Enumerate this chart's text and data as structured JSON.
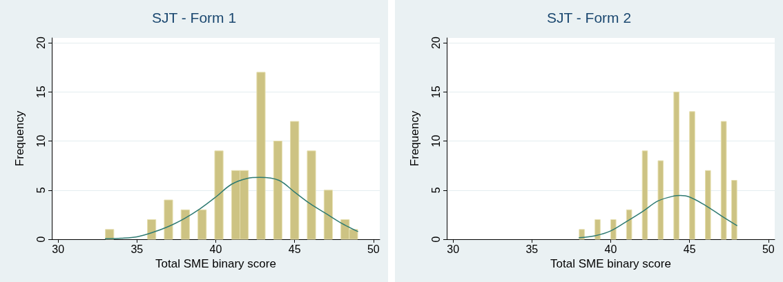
{
  "chart_data": [
    {
      "type": "histogram",
      "title": "SJT - Form 1",
      "xlabel": "Total SME binary score",
      "ylabel": "Frequency",
      "bins": [
        33,
        33.533,
        34.067,
        34.6,
        35.133,
        35.667,
        36.2,
        36.733,
        37.267,
        37.8,
        38.333,
        38.867,
        39.4,
        39.933,
        40.467,
        41,
        41.533,
        42.067,
        42.6,
        43.133,
        43.667,
        44.2,
        44.733,
        45.267,
        45.8,
        46.333,
        46.867,
        47.4,
        47.933,
        48.467,
        49
      ],
      "series": [
        {
          "type": "histogram",
          "color": "#cdc383",
          "values": [
            1,
            0,
            0,
            0,
            0,
            2,
            0,
            4,
            0,
            3,
            0,
            3,
            0,
            9,
            0,
            7,
            7,
            0,
            17,
            0,
            10,
            0,
            12,
            0,
            9,
            0,
            5,
            0,
            2,
            1
          ]
        },
        {
          "type": "line",
          "color": "#2e7a72",
          "x": [
            33,
            34,
            35,
            36,
            37,
            38,
            39,
            40,
            41,
            42,
            42.8,
            44,
            45,
            46,
            47,
            48,
            49
          ],
          "values": [
            0.05,
            0.1,
            0.25,
            0.7,
            1.3,
            2.1,
            3.1,
            4.3,
            5.6,
            6.2,
            6.3,
            6.0,
            4.8,
            3.6,
            2.6,
            1.6,
            0.8
          ]
        }
      ],
      "xlim": [
        29.6,
        50.4
      ],
      "xticks": [
        30,
        35,
        40,
        45,
        50
      ],
      "ylim": [
        0,
        20.5
      ],
      "yticks": [
        0,
        5,
        10,
        15,
        20
      ],
      "grid": "y"
    },
    {
      "type": "histogram",
      "title": "SJT - Form 2",
      "xlabel": "Total SME binary score",
      "ylabel": "Frequency",
      "bins": [
        38,
        38.333,
        38.667,
        39,
        39.333,
        39.667,
        40,
        40.333,
        40.667,
        41,
        41.333,
        41.667,
        42,
        42.333,
        42.667,
        43,
        43.333,
        43.667,
        44,
        44.333,
        44.667,
        45,
        45.333,
        45.667,
        46,
        46.333,
        46.667,
        47,
        47.333,
        47.667,
        48
      ],
      "series": [
        {
          "type": "histogram",
          "color": "#cdc383",
          "values": [
            1,
            0,
            0,
            2,
            0,
            0,
            2,
            0,
            0,
            3,
            0,
            0,
            9,
            0,
            0,
            8,
            0,
            0,
            15,
            0,
            0,
            13,
            0,
            0,
            7,
            0,
            0,
            12,
            0,
            6
          ]
        },
        {
          "type": "line",
          "color": "#2e7a72",
          "x": [
            38,
            39,
            40,
            41,
            42,
            43,
            44,
            44.4,
            45,
            46,
            47,
            48
          ],
          "values": [
            0.15,
            0.35,
            0.85,
            1.8,
            2.8,
            3.9,
            4.4,
            4.45,
            4.3,
            3.45,
            2.4,
            1.4
          ]
        }
      ],
      "xlim": [
        29.6,
        50.4
      ],
      "xticks": [
        30,
        35,
        40,
        45,
        50
      ],
      "ylim": [
        0,
        20.5
      ],
      "yticks": [
        0,
        5,
        10,
        15,
        20
      ],
      "grid": "y"
    }
  ]
}
